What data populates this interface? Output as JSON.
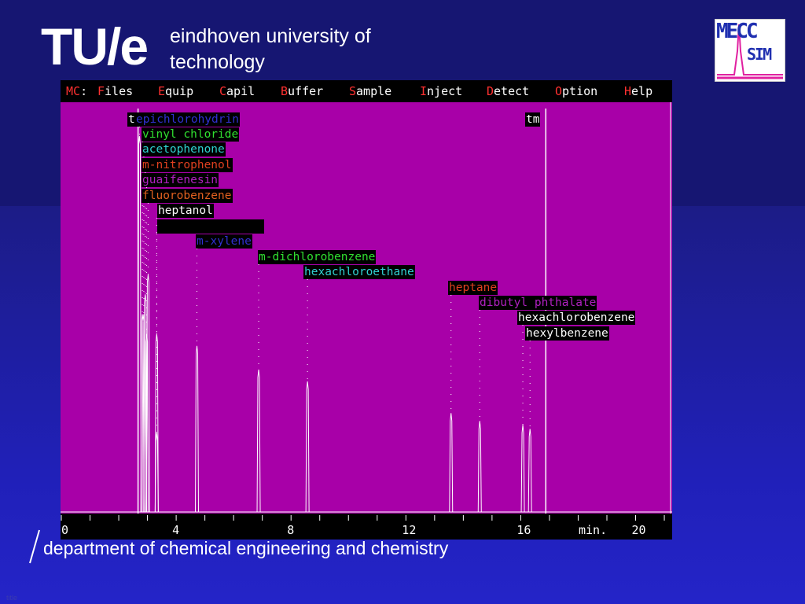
{
  "header": {
    "logo": "TU/e",
    "university_line1": "eindhoven university of",
    "university_line2": "technology"
  },
  "badge": {
    "line1": "MECC",
    "line2": "SIM"
  },
  "menu": {
    "prefix_hot": "MC",
    "prefix_rest": ":",
    "items": [
      {
        "hot": "F",
        "rest": "iles"
      },
      {
        "hot": "E",
        "rest": "quip"
      },
      {
        "hot": "C",
        "rest": "apil"
      },
      {
        "hot": "B",
        "rest": "uffer"
      },
      {
        "hot": "S",
        "rest": "ample"
      },
      {
        "hot": "I",
        "rest": "nject"
      },
      {
        "hot": "D",
        "rest": "etect"
      },
      {
        "hot": "O",
        "rest": "ption"
      },
      {
        "hot": "H",
        "rest": "elp"
      }
    ]
  },
  "markers": {
    "t0": "t",
    "tm": "tm"
  },
  "compounds": [
    {
      "name": "epichlorohydrin",
      "color": "#3030d0"
    },
    {
      "name": "vinyl chloride",
      "color": "#30e030"
    },
    {
      "name": "acetophenone",
      "color": "#30d0d0"
    },
    {
      "name": "m-nitrophenol",
      "color": "#e04020"
    },
    {
      "name": "guaifenesin",
      "color": "#b020c0"
    },
    {
      "name": "fluorobenzene",
      "color": "#e06020"
    },
    {
      "name": "heptanol",
      "color": "#ffffff"
    },
    {
      "name": "",
      "color": "#ffffff"
    },
    {
      "name": "m-xylene",
      "color": "#3030d0"
    },
    {
      "name": "m-dichlorobenzene",
      "color": "#30e030"
    },
    {
      "name": "hexachloroethane",
      "color": "#30d0d0"
    },
    {
      "name": "heptane",
      "color": "#e04020"
    },
    {
      "name": "dibutyl phthalate",
      "color": "#b020c0"
    },
    {
      "name": "hexachlorobenzene",
      "color": "#ffffff"
    },
    {
      "name": "hexylbenzene",
      "color": "#ffffff"
    }
  ],
  "axis": {
    "ticks": [
      "0",
      "4",
      "8",
      "12",
      "16",
      "20"
    ],
    "unit": "min."
  },
  "chart_data": {
    "type": "line",
    "x_unit": "min.",
    "xlim": [
      0,
      21.3
    ],
    "markers": [
      {
        "label": "t",
        "x": 2.7
      },
      {
        "label": "tm",
        "x": 16.9
      }
    ],
    "peaks": [
      {
        "name": "epichlorohydrin",
        "x": 2.75,
        "height": 0.95
      },
      {
        "name": "vinyl chloride",
        "x": 2.85,
        "height": 0.5
      },
      {
        "name": "acetophenone",
        "x": 2.9,
        "height": 0.5
      },
      {
        "name": "m-nitrophenol",
        "x": 2.95,
        "height": 0.55
      },
      {
        "name": "guaifenesin",
        "x": 3.0,
        "height": 0.45
      },
      {
        "name": "fluorobenzene",
        "x": 3.05,
        "height": 0.6
      },
      {
        "name": "heptanol",
        "x": 3.35,
        "height": 0.45
      },
      {
        "name": "",
        "x": 3.35,
        "height": 0.2
      },
      {
        "name": "m-xylene",
        "x": 4.75,
        "height": 0.42
      },
      {
        "name": "m-dichlorobenzene",
        "x": 6.9,
        "height": 0.36
      },
      {
        "name": "hexachloroethane",
        "x": 8.6,
        "height": 0.33
      },
      {
        "name": "heptane",
        "x": 13.6,
        "height": 0.25
      },
      {
        "name": "dibutyl phthalate",
        "x": 14.6,
        "height": 0.23
      },
      {
        "name": "hexachlorobenzene",
        "x": 16.1,
        "height": 0.22
      },
      {
        "name": "hexylbenzene",
        "x": 16.35,
        "height": 0.21
      }
    ]
  },
  "footer": {
    "department": "department of chemical engineering and chemistry",
    "title_tag": "title"
  }
}
